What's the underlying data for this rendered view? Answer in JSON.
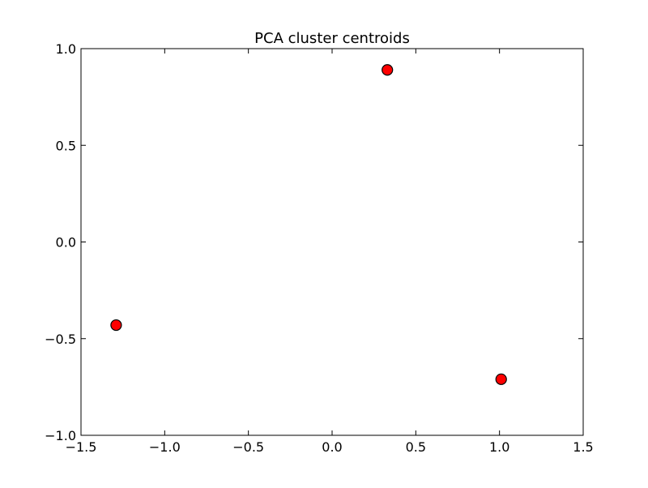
{
  "chart_data": {
    "type": "scatter",
    "title": "PCA cluster centroids",
    "xlabel": "",
    "ylabel": "",
    "xlim": [
      -1.5,
      1.5
    ],
    "ylim": [
      -1.0,
      1.0
    ],
    "x_ticks": [
      -1.5,
      -1.0,
      -0.5,
      0.0,
      0.5,
      1.0,
      1.5
    ],
    "x_tick_labels": [
      "−1.5",
      "−1.0",
      "−0.5",
      "0.0",
      "0.5",
      "1.0",
      "1.5"
    ],
    "y_ticks": [
      -1.0,
      -0.5,
      0.0,
      0.5,
      1.0
    ],
    "y_tick_labels": [
      "−1.0",
      "−0.5",
      "0.0",
      "0.5",
      "1.0"
    ],
    "grid": false,
    "series": [
      {
        "x": [
          0.33,
          -1.29,
          1.01
        ],
        "y": [
          0.89,
          -0.43,
          -0.71
        ],
        "marker": "circle",
        "color": "#ff0000",
        "edge_color": "#000000"
      }
    ]
  }
}
